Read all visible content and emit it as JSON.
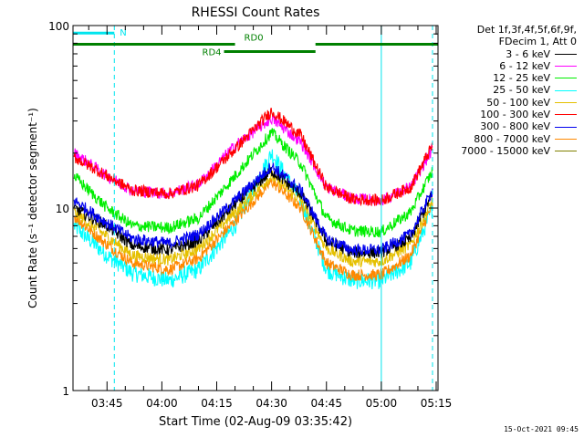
{
  "chart_data": {
    "type": "line",
    "title": "RHESSI Count Rates",
    "xlabel": "Start Time (02-Aug-09 03:35:42)",
    "ylabel": "Count Rate (s⁻¹ detector segment⁻¹)",
    "y_scale": "log",
    "ylim": [
      1,
      100
    ],
    "xlim": [
      "03:35:42",
      "05:15:30"
    ],
    "yticks": [
      "1",
      "10",
      "100"
    ],
    "xticks": [
      "03:45",
      "04:00",
      "04:15",
      "04:30",
      "04:45",
      "05:00",
      "05:15"
    ],
    "grid": false,
    "legend_position": "right",
    "legend_header": [
      "Det 1f,3f,4f,5f,6f,9f,",
      "FDecim 1, Att 0"
    ],
    "series": [
      {
        "name": "3 - 6 keV",
        "color": "#000000",
        "x": [
          "03:36",
          "03:45",
          "03:52",
          "04:02",
          "04:10",
          "04:20",
          "04:30",
          "04:38",
          "04:45",
          "04:52",
          "05:00",
          "05:08",
          "05:14"
        ],
        "values": [
          10.0,
          8.0,
          6.2,
          5.9,
          6.6,
          10.5,
          16.0,
          12.0,
          6.6,
          5.7,
          5.7,
          6.8,
          12.0
        ]
      },
      {
        "name": "6 - 12 keV",
        "color": "#ff00ff",
        "x": [
          "03:36",
          "03:45",
          "03:52",
          "04:02",
          "04:10",
          "04:20",
          "04:30",
          "04:38",
          "04:45",
          "04:52",
          "05:00",
          "05:08",
          "05:14"
        ],
        "values": [
          20.0,
          15.0,
          12.5,
          12.0,
          13.5,
          22.0,
          31.0,
          23.0,
          13.0,
          11.3,
          11.0,
          13.0,
          21.0
        ]
      },
      {
        "name": "12 - 25 keV",
        "color": "#00ee00",
        "x": [
          "03:36",
          "03:45",
          "03:52",
          "04:02",
          "04:10",
          "04:20",
          "04:30",
          "04:38",
          "04:45",
          "04:52",
          "05:00",
          "05:08",
          "05:14"
        ],
        "values": [
          15.0,
          10.0,
          8.0,
          7.8,
          8.8,
          15.0,
          26.0,
          17.5,
          8.8,
          7.5,
          7.4,
          9.5,
          16.0
        ]
      },
      {
        "name": "25 - 50 keV",
        "color": "#00ffff",
        "x": [
          "03:36",
          "03:45",
          "03:52",
          "04:02",
          "04:10",
          "04:20",
          "04:30",
          "04:38",
          "04:45",
          "04:52",
          "05:00",
          "05:08",
          "05:14"
        ],
        "values": [
          8.0,
          5.5,
          4.4,
          4.0,
          4.6,
          8.0,
          20.0,
          11.0,
          4.6,
          4.0,
          4.0,
          5.0,
          10.0
        ]
      },
      {
        "name": "50 - 100 keV",
        "color": "#e5c000",
        "x": [
          "03:36",
          "03:45",
          "03:52",
          "04:02",
          "04:10",
          "04:20",
          "04:30",
          "04:38",
          "04:45",
          "04:52",
          "05:00",
          "05:08",
          "05:14"
        ],
        "values": [
          9.5,
          7.0,
          5.5,
          5.2,
          6.0,
          9.5,
          15.0,
          11.0,
          6.0,
          5.1,
          5.1,
          6.3,
          11.0
        ]
      },
      {
        "name": "100 - 300 keV",
        "color": "#ff0000",
        "x": [
          "03:36",
          "03:45",
          "03:52",
          "04:02",
          "04:10",
          "04:20",
          "04:30",
          "04:38",
          "04:45",
          "04:52",
          "05:00",
          "05:08",
          "05:14"
        ],
        "values": [
          19.0,
          15.0,
          12.5,
          12.0,
          13.3,
          21.0,
          34.0,
          25.0,
          13.0,
          11.2,
          11.0,
          13.0,
          22.0
        ]
      },
      {
        "name": "300 - 800 keV",
        "color": "#0000ee",
        "x": [
          "03:36",
          "03:45",
          "03:52",
          "04:02",
          "04:10",
          "04:20",
          "04:30",
          "04:38",
          "04:45",
          "04:52",
          "05:00",
          "05:08",
          "05:14"
        ],
        "values": [
          11.0,
          8.3,
          6.8,
          6.4,
          7.2,
          11.0,
          17.0,
          12.5,
          6.8,
          5.9,
          5.9,
          7.2,
          12.5
        ]
      },
      {
        "name": "800 - 7000 keV",
        "color": "#ff8800",
        "x": [
          "03:36",
          "03:45",
          "03:52",
          "04:02",
          "04:10",
          "04:20",
          "04:30",
          "04:38",
          "04:45",
          "04:52",
          "05:00",
          "05:08",
          "05:14"
        ],
        "values": [
          9.0,
          6.3,
          5.0,
          4.6,
          5.3,
          8.5,
          14.0,
          10.0,
          5.0,
          4.3,
          4.3,
          5.5,
          10.5
        ]
      },
      {
        "name": "7000 - 15000 keV",
        "color": "#808000",
        "x": [],
        "values": []
      }
    ],
    "annotations": [
      {
        "text": "N",
        "color": "#00e5ee",
        "bar": [
          "03:35:42",
          "03:47"
        ],
        "level": 91
      },
      {
        "text": "RD0",
        "color": "#008000",
        "bar": [
          "03:35:42",
          "04:20"
        ],
        "level": 79
      },
      {
        "text": "RD0",
        "color": "#008000",
        "bar": [
          "04:42",
          "05:15:30"
        ],
        "level": 79
      },
      {
        "text": "RD4",
        "color": "#008000",
        "bar": [
          "04:17",
          "04:42"
        ],
        "level": 72
      }
    ],
    "vlines": [
      {
        "time": "03:35:42",
        "color": "#00e5ee",
        "style": "solid"
      },
      {
        "time": "03:47",
        "color": "#00e5ee",
        "style": "dashed"
      },
      {
        "time": "05:00",
        "color": "#00e5ee",
        "style": "solid"
      },
      {
        "time": "05:14",
        "color": "#00e5ee",
        "style": "dashed"
      }
    ]
  },
  "timestamp": "15-Oct-2021 09:45"
}
